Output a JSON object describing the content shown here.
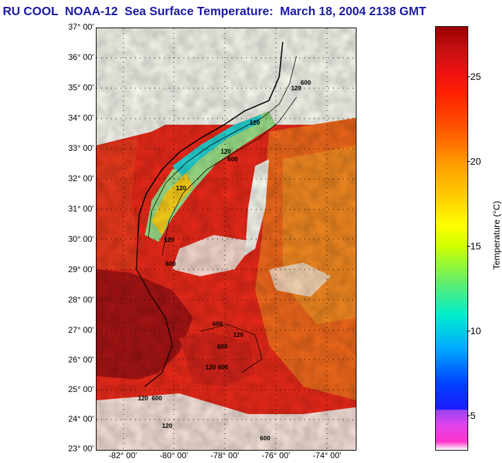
{
  "title": "RU COOL  NOAA-12  Sea Surface Temperature:  March 18, 2004 2138 GMT",
  "map": {
    "lat_labels": [
      "37° 00'",
      "36° 00'",
      "35° 00'",
      "34° 00'",
      "33° 00'",
      "32° 00'",
      "31° 00'",
      "30° 00'",
      "29° 00'",
      "28° 00'",
      "27° 00'",
      "26° 00'",
      "25° 00'",
      "24° 00'",
      "23° 00'"
    ],
    "lon_labels": [
      "-82° 00'",
      "-80° 00'",
      "-78° 00'",
      "-76° 00'",
      "-74° 00'"
    ],
    "contour_labels": [
      "120",
      "600",
      "120",
      "120",
      "600",
      "120",
      "120",
      "600",
      "120",
      "600",
      "600",
      "120",
      "120",
      "600",
      "600",
      "120",
      "600"
    ]
  },
  "colorbar": {
    "label": "Temperature (°C)",
    "ticks": [
      "25",
      "20",
      "15",
      "10",
      "5"
    ],
    "tick_values": [
      25,
      20,
      15,
      10,
      5
    ],
    "range": [
      3,
      28
    ],
    "colors": {
      "max": "#990000",
      "warm": "#ee2211",
      "mid": "#ffff00",
      "cool": "#00eecc",
      "cold": "#1c1cff",
      "min": "#ff33cc"
    }
  }
}
